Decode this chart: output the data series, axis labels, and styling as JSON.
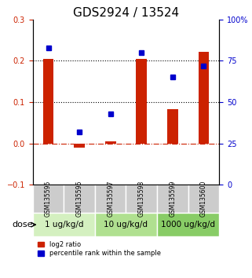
{
  "title": "GDS2924 / 13524",
  "samples": [
    "GSM135595",
    "GSM135596",
    "GSM135597",
    "GSM135598",
    "GSM135599",
    "GSM135600"
  ],
  "log2_ratio": [
    0.205,
    -0.01,
    0.005,
    0.205,
    0.083,
    0.222
  ],
  "percentile_rank": [
    0.83,
    0.32,
    0.43,
    0.8,
    0.65,
    0.72
  ],
  "ylim_left": [
    -0.1,
    0.3
  ],
  "ylim_right": [
    0,
    100
  ],
  "yticks_left": [
    -0.1,
    0.0,
    0.1,
    0.2,
    0.3
  ],
  "yticks_right": [
    0,
    25,
    50,
    75,
    100
  ],
  "hlines": [
    0.0,
    0.1,
    0.2
  ],
  "bar_color": "#cc2200",
  "dot_color": "#0000cc",
  "zero_line_color": "#cc2200",
  "dose_groups": [
    {
      "label": "1 ug/kg/d",
      "samples": [
        0,
        1
      ],
      "color": "#d4f0c0"
    },
    {
      "label": "10 ug/kg/d",
      "samples": [
        2,
        3
      ],
      "color": "#b0e090"
    },
    {
      "label": "1000 ug/kg/d",
      "samples": [
        4,
        5
      ],
      "color": "#88cc66"
    }
  ],
  "legend_bar_label": "log2 ratio",
  "legend_dot_label": "percentile rank within the sample",
  "xlabel_dose": "dose",
  "title_fontsize": 11,
  "tick_fontsize": 7,
  "dose_fontsize": 7.5
}
